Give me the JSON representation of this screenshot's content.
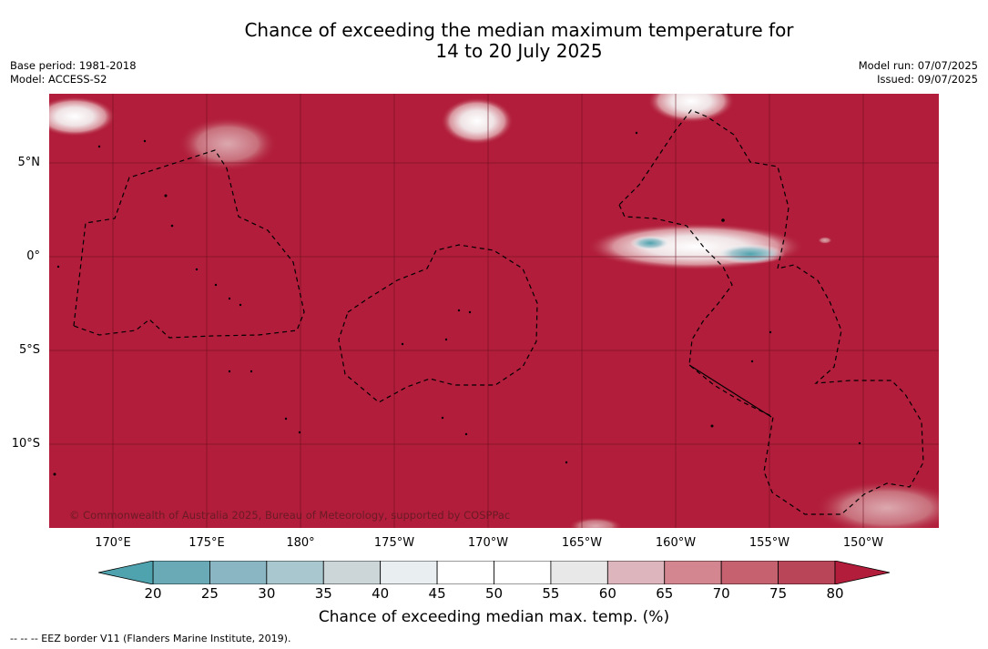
{
  "title_line1": "Chance of exceeding the median maximum temperature for",
  "title_line2": "14 to 20 July 2025",
  "base_period": "Base period: 1981-2018",
  "model": "Model: ACCESS-S2",
  "model_run": "Model run: 07/07/2025",
  "issued": "Issued: 09/07/2025",
  "copyright": "© Commonwealth of Australia 2025, Bureau of Meteorology, supported by COSPPac",
  "lat_labels": [
    "5°N",
    "0°",
    "5°S",
    "10°S"
  ],
  "lon_labels": [
    "170°E",
    "175°E",
    "180°",
    "175°W",
    "170°W",
    "165°W",
    "160°W",
    "155°W",
    "150°W"
  ],
  "colorbar": {
    "ticks": [
      "20",
      "25",
      "30",
      "35",
      "40",
      "45",
      "50",
      "55",
      "60",
      "65",
      "70",
      "75",
      "80"
    ],
    "colors": [
      "#6aaab6",
      "#89b6c2",
      "#a8c7cf",
      "#ccd6d9",
      "#e9eef1",
      "#ffffff",
      "#ffffff",
      "#e8e8e8",
      "#ddb5bc",
      "#d3868f",
      "#c6616f",
      "#b84558"
    ],
    "low_color": "#4fa3ae",
    "high_color": "#b11d3a",
    "label": "Chance of exceeding median max. temp. (%)"
  },
  "eez_note": "--  --  -- EEZ border V11 (Flanders Marine Institute, 2019).",
  "map_colors": {
    "background": "#b11d3a",
    "grid": "#6b1020"
  }
}
